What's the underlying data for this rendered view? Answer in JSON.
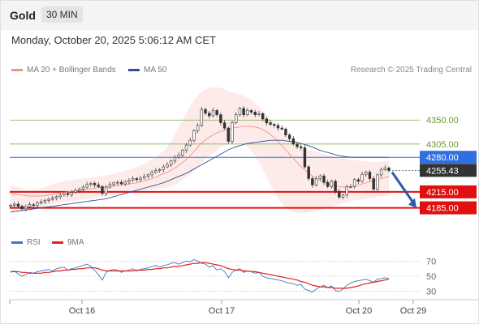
{
  "header": {
    "title": "Gold",
    "interval": "30 MIN"
  },
  "datetime": "Monday, October 20, 2025 5:06:12 AM CET",
  "credit": "Research © 2025 Trading Central",
  "legend": {
    "bollinger": {
      "label": "MA 20 + Bollinger Bands",
      "color": "#f4908a"
    },
    "ma50": {
      "label": "MA 50",
      "color": "#2f5496"
    },
    "rsi": {
      "label": "RSI",
      "color": "#4472c4"
    },
    "rsi_ma": {
      "label": "9MA",
      "color": "#e02020"
    }
  },
  "chart_data": [
    {
      "type": "candlestick",
      "ylim": [
        4160,
        4425
      ],
      "x_tick_labels": [
        "Oct 16",
        "Oct 17",
        "Oct 20",
        "Oct 29"
      ],
      "levels": [
        {
          "value": 4350.0,
          "label": "4350.00",
          "kind": "target",
          "color": "#7cb342"
        },
        {
          "value": 4305.0,
          "label": "4305.00",
          "kind": "target",
          "color": "#7cb342"
        },
        {
          "value": 4280.0,
          "label": "4280.00",
          "kind": "pivot",
          "color": "#2f6fe0"
        },
        {
          "value": 4255.43,
          "label": "4255.43",
          "kind": "last-price",
          "color": "#333333"
        },
        {
          "value": 4215.0,
          "label": "4215.00",
          "kind": "support",
          "color": "#e01010"
        },
        {
          "value": 4185.0,
          "label": "4185.00",
          "kind": "support",
          "color": "#e01010"
        }
      ],
      "close": [
        4190,
        4192,
        4188,
        4183,
        4187,
        4191,
        4190,
        4194,
        4196,
        4199,
        4201,
        4203,
        4206,
        4209,
        4212,
        4210,
        4214,
        4217,
        4220,
        4224,
        4229,
        4231,
        4228,
        4225,
        4212,
        4224,
        4229,
        4232,
        4233,
        4230,
        4234,
        4237,
        4240,
        4238,
        4241,
        4244,
        4247,
        4252,
        4255,
        4257,
        4262,
        4266,
        4273,
        4280,
        4284,
        4293,
        4303,
        4312,
        4330,
        4340,
        4370,
        4363,
        4358,
        4368,
        4360,
        4345,
        4335,
        4310,
        4345,
        4360,
        4372,
        4360,
        4368,
        4365,
        4360,
        4362,
        4352,
        4345,
        4342,
        4340,
        4335,
        4333,
        4322,
        4315,
        4305,
        4300,
        4298,
        4262,
        4240,
        4228,
        4240,
        4245,
        4233,
        4225,
        4235,
        4216,
        4205,
        4209,
        4225,
        4225,
        4238,
        4235,
        4248,
        4252,
        4240,
        4220,
        4247,
        4257,
        4260,
        4255
      ],
      "ma20": [
        4212,
        4211,
        4210,
        4209,
        4208,
        4207,
        4207,
        4207,
        4207,
        4208,
        4209,
        4210,
        4212,
        4213,
        4214,
        4215,
        4216,
        4217,
        4218,
        4219,
        4220,
        4221,
        4222,
        4223,
        4223,
        4224,
        4225,
        4226,
        4227,
        4228,
        4229,
        4230,
        4231,
        4232,
        4234,
        4236,
        4238,
        4240,
        4243,
        4246,
        4249,
        4252,
        4256,
        4260,
        4265,
        4270,
        4276,
        4283,
        4291,
        4299,
        4307,
        4313,
        4318,
        4322,
        4326,
        4329,
        4331,
        4333,
        4335,
        4336,
        4337,
        4338,
        4338,
        4338,
        4337,
        4335,
        4332,
        4328,
        4323,
        4317,
        4310,
        4302,
        4294,
        4286,
        4278,
        4270,
        4263,
        4256,
        4250,
        4245,
        4240,
        4236,
        4233,
        4230,
        4228,
        4226,
        4225,
        4224,
        4224,
        4225,
        4226,
        4228,
        4230,
        4232,
        4234,
        4236,
        4238,
        4240,
        4242,
        4244
      ],
      "bb_upper": [
        4228,
        4226,
        4224,
        4222,
        4220,
        4219,
        4219,
        4220,
        4222,
        4224,
        4227,
        4229,
        4231,
        4233,
        4235,
        4236,
        4237,
        4238,
        4239,
        4240,
        4241,
        4242,
        4243,
        4244,
        4245,
        4246,
        4247,
        4249,
        4251,
        4253,
        4255,
        4257,
        4259,
        4262,
        4265,
        4268,
        4272,
        4276,
        4280,
        4286,
        4292,
        4300,
        4310,
        4322,
        4336,
        4350,
        4364,
        4376,
        4387,
        4396,
        4403,
        4408,
        4411,
        4412,
        4412,
        4410,
        4408,
        4405,
        4402,
        4400,
        4398,
        4396,
        4392,
        4388,
        4382,
        4375,
        4368,
        4360,
        4352,
        4344,
        4336,
        4328,
        4320,
        4312,
        4306,
        4300,
        4298,
        4296,
        4294,
        4292,
        4290,
        4288,
        4286,
        4284,
        4282,
        4280,
        4279,
        4278,
        4277,
        4276,
        4275,
        4274,
        4273,
        4272,
        4272,
        4271,
        4271,
        4272,
        4272,
        4273
      ],
      "bb_lower": [
        4178,
        4178,
        4179,
        4179,
        4180,
        4181,
        4182,
        4183,
        4185,
        4187,
        4189,
        4191,
        4193,
        4195,
        4196,
        4197,
        4198,
        4199,
        4200,
        4201,
        4202,
        4203,
        4204,
        4205,
        4206,
        4207,
        4208,
        4209,
        4210,
        4211,
        4212,
        4213,
        4214,
        4215,
        4216,
        4217,
        4218,
        4219,
        4220,
        4221,
        4222,
        4223,
        4225,
        4228,
        4232,
        4237,
        4242,
        4248,
        4255,
        4262,
        4269,
        4276,
        4282,
        4288,
        4293,
        4298,
        4302,
        4305,
        4307,
        4308,
        4307,
        4305,
        4300,
        4292,
        4282,
        4270,
        4257,
        4243,
        4229,
        4215,
        4203,
        4193,
        4186,
        4181,
        4178,
        4176,
        4175,
        4175,
        4176,
        4177,
        4179,
        4181,
        4183,
        4185,
        4187,
        4189,
        4191,
        4193,
        4195,
        4197,
        4199,
        4200,
        4201,
        4202,
        4203,
        4204,
        4205,
        4206,
        4207,
        4208
      ],
      "ma50": [
        4177,
        4178,
        4179,
        4180,
        4181,
        4182,
        4183,
        4184,
        4185,
        4186,
        4187,
        4188,
        4189,
        4190,
        4191,
        4192,
        4193,
        4194,
        4195,
        4196,
        4197,
        4198,
        4199,
        4200,
        4201,
        4202,
        4204,
        4206,
        4208,
        4210,
        4212,
        4214,
        4216,
        4218,
        4220,
        4222,
        4224,
        4226,
        4228,
        4230,
        4232,
        4235,
        4238,
        4241,
        4244,
        4247,
        4250,
        4254,
        4258,
        4262,
        4266,
        4270,
        4274,
        4278,
        4282,
        4286,
        4290,
        4294,
        4297,
        4300,
        4302,
        4304,
        4306,
        4307,
        4308,
        4309,
        4310,
        4311,
        4312,
        4312,
        4312,
        4312,
        4311,
        4310,
        4309,
        4308,
        4306,
        4304,
        4302,
        4299,
        4296,
        4293,
        4291,
        4289,
        4287,
        4285,
        4283,
        4282,
        4281,
        4280,
        4280,
        4280,
        4280,
        4280,
        4280,
        4280,
        4280,
        4280,
        4280,
        4280
      ],
      "projection": {
        "from": 4252,
        "to": 4185
      }
    },
    {
      "type": "line",
      "title": "RSI",
      "ylim": [
        20,
        80
      ],
      "y_ticks": [
        30,
        50,
        70
      ],
      "series": [
        {
          "name": "RSI",
          "values": [
            55,
            57,
            53,
            50,
            52,
            55,
            54,
            56,
            57,
            58,
            59,
            57,
            60,
            61,
            62,
            58,
            60,
            61,
            63,
            64,
            66,
            63,
            58,
            52,
            45,
            55,
            58,
            59,
            58,
            55,
            57,
            58,
            60,
            57,
            59,
            60,
            61,
            63,
            64,
            62,
            64,
            65,
            67,
            68,
            66,
            68,
            70,
            69,
            72,
            70,
            67,
            66,
            62,
            64,
            58,
            60,
            56,
            48,
            55,
            58,
            60,
            55,
            57,
            56,
            54,
            55,
            50,
            48,
            47,
            46,
            45,
            44,
            42,
            41,
            40,
            38,
            39,
            33,
            31,
            29,
            33,
            36,
            38,
            35,
            37,
            31,
            30,
            33,
            38,
            41,
            43,
            44,
            45,
            46,
            44,
            42,
            46,
            47,
            48,
            47
          ]
        },
        {
          "name": "9MA",
          "values": [
            56,
            56,
            56,
            55,
            55,
            54,
            54,
            54,
            54,
            55,
            55,
            56,
            57,
            57,
            58,
            58,
            59,
            59,
            60,
            60,
            61,
            61,
            61,
            60,
            58,
            57,
            57,
            57,
            57,
            57,
            57,
            57,
            57,
            58,
            58,
            58,
            59,
            59,
            60,
            60,
            61,
            61,
            62,
            63,
            63,
            64,
            65,
            66,
            67,
            67,
            68,
            68,
            67,
            66,
            65,
            64,
            62,
            60,
            59,
            58,
            58,
            57,
            57,
            56,
            56,
            55,
            54,
            53,
            52,
            51,
            50,
            49,
            48,
            47,
            46,
            45,
            43,
            42,
            40,
            38,
            37,
            36,
            36,
            35,
            35,
            34,
            34,
            34,
            34,
            35,
            36,
            37,
            39,
            40,
            41,
            42,
            43,
            44,
            45,
            46
          ]
        }
      ]
    }
  ]
}
